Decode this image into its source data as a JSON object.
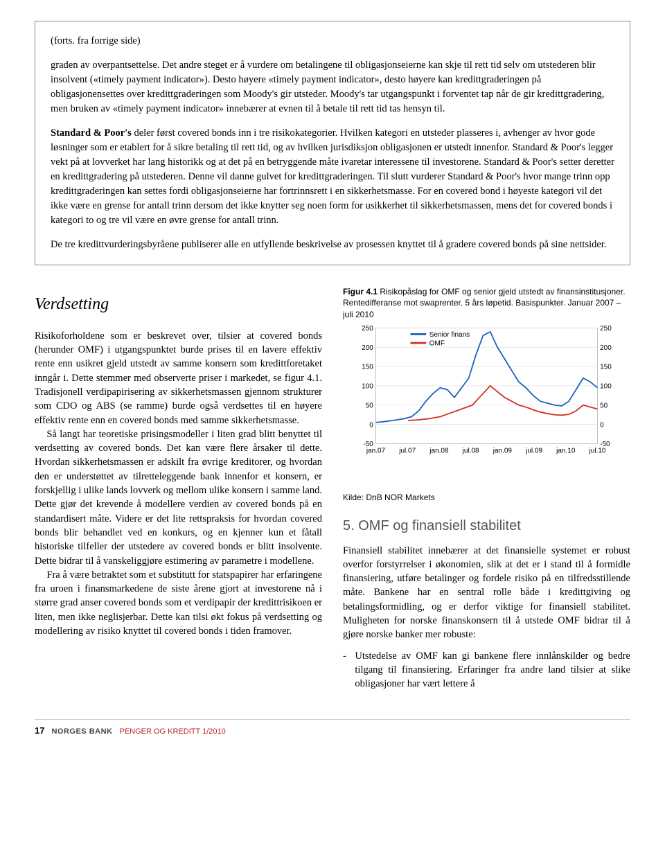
{
  "box": {
    "cont": "(forts. fra forrige side)",
    "p1_a": "graden av overpantsettelse. Det andre steget er å vurdere om betalingene til obligasjonseierne kan skje til rett tid selv om utstederen blir insolvent («timely payment indicator»). Desto høyere «timely payment indicator», desto høyere kan kredittgraderingen på obligasjonensettes over kredittgraderingen som Moody's gir utsteder. Moody's tar utgangspunkt i forventet tap når de gir kredittgradering, men bruken av «timely payment indicator» innebærer at evnen til å betale til rett tid tas hensyn til.",
    "p2_bold": "Standard & Poor's",
    "p2_rest": " deler først covered bonds inn i tre risikokategorier. Hvilken kategori en utsteder plasseres i, avhenger av hvor gode løsninger som er etablert for å sikre betaling til rett tid, og av hvilken jurisdiksjon obligasjonen er utstedt innenfor. Standard & Poor's legger vekt på at lovverket har lang historikk og at det på en betryggende måte ivaretar interessene til investorene. Standard & Poor's setter deretter en kredittgradering på utstederen. Denne vil danne gulvet for kredittgraderingen. Til slutt vurderer Standard & Poor's hvor mange trinn opp kredittgraderingen kan settes fordi obligasjonseierne har fortrinnsrett i en sikkerhetsmasse. For en covered bond i høyeste kategori vil det ikke være en grense for antall trinn dersom det ikke knytter seg noen form for usikkerhet til sikkerhetsmassen, mens det for covered bonds i kategori to og tre vil være en øvre grense for antall trinn.",
    "p3": "De tre kredittvurderingsbyråene publiserer alle en utfyllende beskrivelse av prosessen knyttet til å gradere covered bonds på sine nettsider."
  },
  "left": {
    "heading": "Verdsetting",
    "p1": "Risikoforholdene som er beskrevet over, tilsier at covered bonds (herunder OMF) i utgangspunktet burde prises til en lavere effektiv rente enn usikret gjeld utstedt av samme konsern som kredittforetaket inngår i. Dette stemmer med observerte priser i markedet, se figur 4.1. Tradisjonell verdipapirisering av sikkerhetsmassen gjennom strukturer som CDO og ABS (se ramme) burde også verdsettes til en høyere effektiv rente enn en covered bonds med samme sikkerhetsmasse.",
    "p2": "Så langt har teoretiske prisingsmodeller i liten grad blitt benyttet til verdsetting av covered bonds. Det kan være flere årsaker til dette. Hvordan sikkerhetsmassen er adskilt fra øvrige kreditorer, og hvordan den er understøttet av tilretteleggende bank innenfor et konsern, er forskjellig i ulike lands lovverk og mellom ulike konsern i samme land. Dette gjør det krevende å modellere verdien av covered bonds på en standardisert måte. Videre er det lite rettspraksis for hvordan covered bonds blir behandlet ved en konkurs, og en kjenner kun et fåtall historiske tilfeller der utstedere av covered bonds er blitt insolvente. Dette bidrar til å vanskeliggjøre estimering av parametre i modellene.",
    "p3": "Fra å være betraktet som et substitutt for statspapirer har erfaringene fra uroen i finansmarkedene de siste årene gjort at investorene nå i større grad anser covered bonds som et verdipapir der kredittrisikoen er liten, men ikke neglisjerbar. Dette kan tilsi økt fokus på verdsetting og modellering av risiko knyttet til covered bonds i tiden framover."
  },
  "right": {
    "fig_label": "Figur 4.1",
    "fig_title_rest": " Risikopåslag for OMF og senior gjeld utstedt av finansinstitusjoner. Rentedifferanse mot swaprenter. 5 års løpetid. Basispunkter. Januar 2007 – juli 2010",
    "source": "Kilde: DnB NOR Markets",
    "heading5": "5. OMF og finansiell stabilitet",
    "p1": "Finansiell stabilitet innebærer at det finansielle systemet er robust overfor forstyrrelser i økonomien, slik at det er i stand til å formidle finansiering, utføre betalinger og fordele risiko på en tilfredsstillende måte. Bankene har en sentral rolle både i kredittgiving og betalingsformidling, og er derfor viktige for finansiell stabilitet. Muligheten for norske finanskonsern til å utstede OMF bidrar til å gjøre norske banker mer robuste:",
    "bullet": "Utstedelse av OMF kan gi bankene flere innlånskilder og bedre tilgang til finansiering. Erfaringer fra andre land tilsier at slike obligasjoner har vært lettere å"
  },
  "chart": {
    "type": "line",
    "x_labels": [
      "jan.07",
      "jul.07",
      "jan.08",
      "jul.08",
      "jan.09",
      "jul.09",
      "jan.10",
      "jul.10"
    ],
    "y_ticks": [
      -50,
      0,
      50,
      100,
      150,
      200,
      250
    ],
    "ylim": [
      -50,
      250
    ],
    "legend": [
      {
        "label": "Senior finans",
        "color": "#2060c0"
      },
      {
        "label": "OMF",
        "color": "#d03020"
      }
    ],
    "background_color": "#ffffff",
    "grid_color": "#cccccc",
    "label_fontsize": 11,
    "line_width": 2,
    "series": {
      "senior_finans": {
        "color": "#2060c0",
        "points": [
          [
            0,
            5
          ],
          [
            3,
            8
          ],
          [
            6,
            12
          ],
          [
            8,
            15
          ],
          [
            10,
            20
          ],
          [
            12,
            35
          ],
          [
            14,
            60
          ],
          [
            16,
            80
          ],
          [
            18,
            95
          ],
          [
            20,
            90
          ],
          [
            22,
            70
          ],
          [
            24,
            95
          ],
          [
            26,
            120
          ],
          [
            28,
            180
          ],
          [
            30,
            230
          ],
          [
            32,
            240
          ],
          [
            34,
            200
          ],
          [
            36,
            170
          ],
          [
            38,
            140
          ],
          [
            40,
            110
          ],
          [
            42,
            95
          ],
          [
            44,
            75
          ],
          [
            46,
            60
          ],
          [
            48,
            55
          ],
          [
            50,
            50
          ],
          [
            52,
            48
          ],
          [
            54,
            60
          ],
          [
            56,
            90
          ],
          [
            58,
            120
          ],
          [
            60,
            110
          ],
          [
            62,
            95
          ]
        ]
      },
      "omf": {
        "color": "#d03020",
        "points": [
          [
            9,
            10
          ],
          [
            12,
            12
          ],
          [
            15,
            15
          ],
          [
            18,
            20
          ],
          [
            21,
            30
          ],
          [
            24,
            40
          ],
          [
            27,
            50
          ],
          [
            30,
            80
          ],
          [
            32,
            100
          ],
          [
            34,
            85
          ],
          [
            36,
            70
          ],
          [
            38,
            60
          ],
          [
            40,
            50
          ],
          [
            42,
            45
          ],
          [
            44,
            38
          ],
          [
            46,
            32
          ],
          [
            48,
            28
          ],
          [
            50,
            25
          ],
          [
            52,
            24
          ],
          [
            54,
            26
          ],
          [
            56,
            35
          ],
          [
            58,
            50
          ],
          [
            60,
            45
          ],
          [
            62,
            40
          ]
        ]
      }
    }
  },
  "footer": {
    "page": "17",
    "bank": "NORGES BANK",
    "pub": "PENGER OG KREDITT 1/2010"
  }
}
